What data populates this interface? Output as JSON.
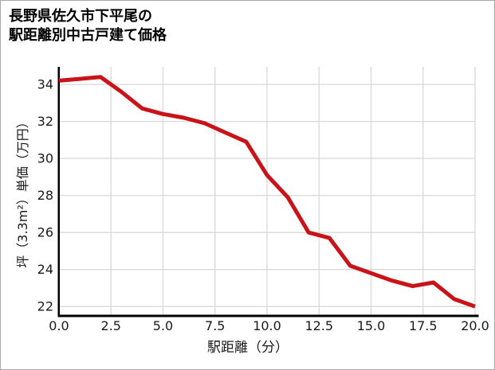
{
  "page": {
    "background": "#ffffff",
    "border_color": "#a8a8a8"
  },
  "title": {
    "line1": "長野県佐久市下平尾の",
    "line2": "駅距離別中古戸建て価格"
  },
  "chart_data": {
    "type": "line",
    "title": "長野県佐久市下平尾の駅距離別中古戸建て価格",
    "xlabel": "駅距離（分）",
    "ylabel": "坪（3.3m²）単価（万円）",
    "x": [
      0,
      1,
      2,
      3,
      4,
      5,
      6,
      7,
      8,
      9,
      10,
      11,
      12,
      13,
      14,
      15,
      16,
      17,
      18,
      19,
      20
    ],
    "values": [
      34.2,
      34.3,
      34.4,
      33.6,
      32.7,
      32.4,
      32.2,
      31.9,
      31.4,
      30.9,
      29.1,
      27.9,
      26.0,
      25.7,
      24.2,
      23.8,
      23.4,
      23.1,
      23.3,
      22.4,
      22.0
    ],
    "x_ticks": [
      "0.0",
      "2.5",
      "5.0",
      "7.5",
      "10.0",
      "12.5",
      "15.0",
      "17.5",
      "20.0"
    ],
    "y_ticks": [
      "22",
      "24",
      "26",
      "28",
      "30",
      "32",
      "34"
    ],
    "xlim": [
      0,
      20
    ],
    "ylim": [
      21.45,
      34.95
    ],
    "grid": true,
    "legend": false,
    "line_color": "#c81419",
    "line_width": 5,
    "grid_color": "#d9d9d9",
    "axis_color": "#000000",
    "tick_label_color": "#1a1a1a",
    "title_color": "#000000"
  }
}
